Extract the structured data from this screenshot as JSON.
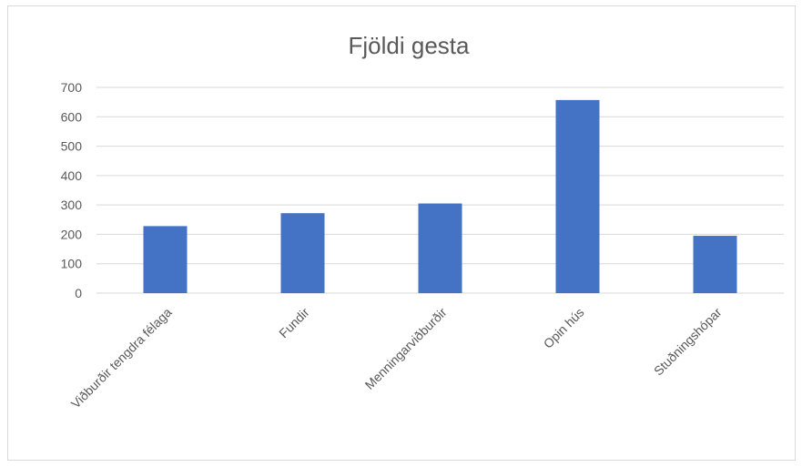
{
  "chart_data": {
    "type": "bar",
    "title": "Fjöldi gesta",
    "categories": [
      "Viðburðir tengdra félaga",
      "Fundir",
      "Menningarviðburðir",
      "Opin hús",
      "Stuðningshópar"
    ],
    "values": [
      228,
      272,
      305,
      657,
      195
    ],
    "yticks": [
      0,
      100,
      200,
      300,
      400,
      500,
      600,
      700
    ],
    "ylim": [
      0,
      700
    ],
    "grid": true,
    "legend": "none",
    "bar_color": "#4472c4",
    "grid_color": "#d9d9d9"
  }
}
